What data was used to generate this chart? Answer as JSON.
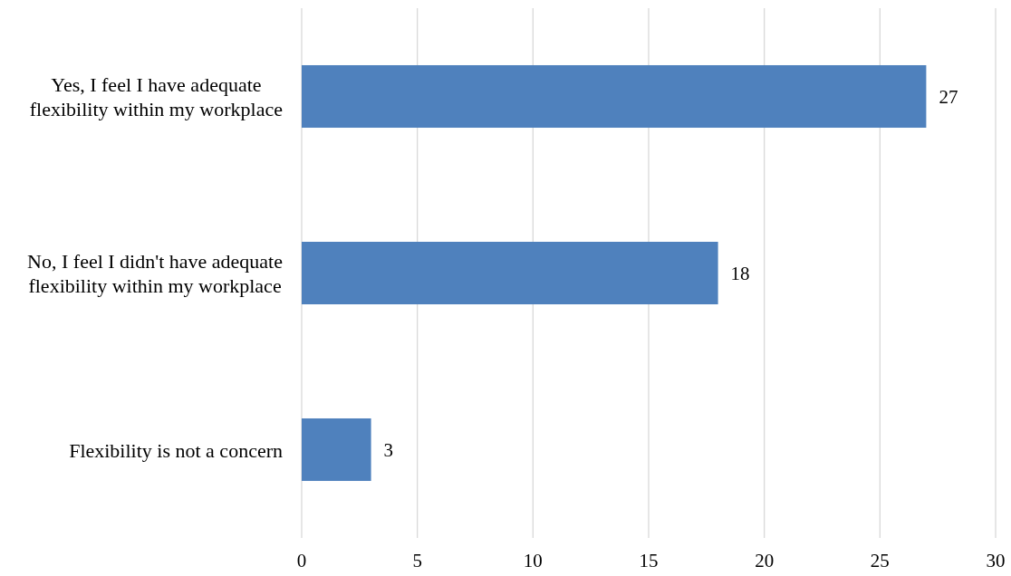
{
  "chart_data": {
    "type": "bar",
    "orientation": "horizontal",
    "categories": [
      "Yes, I feel I have adequate flexibility within my workplace",
      "No, I feel I didn't have adequate flexibility within my workplace",
      "Flexibility is not a concern"
    ],
    "values": [
      27,
      18,
      3
    ],
    "color": "#4f81bd",
    "xlim": [
      0,
      30
    ],
    "xticks": [
      0,
      5,
      10,
      15,
      20,
      25,
      30
    ],
    "grid": "x",
    "data_labels": true
  }
}
